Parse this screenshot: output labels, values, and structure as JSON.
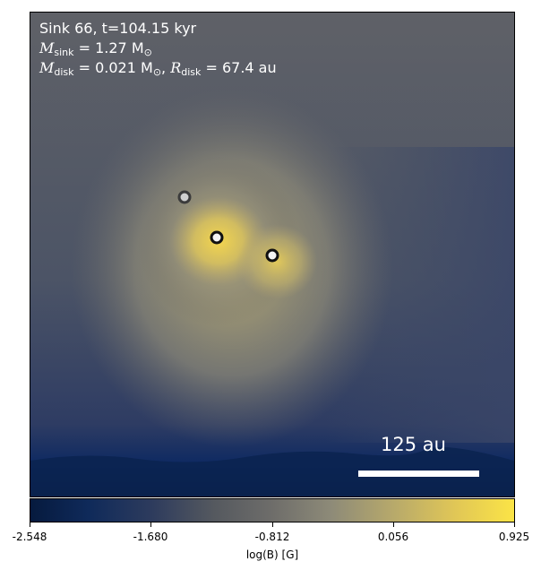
{
  "annotation": {
    "line1": "Sink 66, t=104.15 kyr",
    "msink_symbol": "M",
    "msink_sub": "sink",
    "msink_value": " = 1.27 M",
    "msink_unit_sub": "⊙",
    "mdisk_symbol": "M",
    "mdisk_sub": "disk",
    "mdisk_value": " = 0.021 M",
    "mdisk_unit_sub": "⊙",
    "rdisk_sep": ", ",
    "rdisk_symbol": "R",
    "rdisk_sub": "disk",
    "rdisk_value": " = 67.4 au"
  },
  "scalebar": {
    "label": "125 au"
  },
  "colorbar": {
    "label": "log(B) [G]",
    "ticks": [
      "-2.548",
      "-1.680",
      "-0.812",
      "0.056",
      "0.925"
    ]
  },
  "colors": {
    "low": "#061a3e",
    "mid": "#6e6d6a",
    "high": "#fbe446"
  }
}
